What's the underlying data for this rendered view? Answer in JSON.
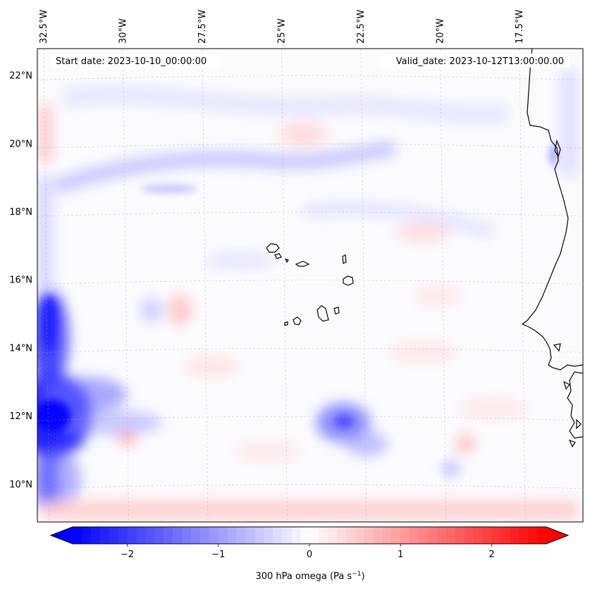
{
  "map": {
    "start_date_text": "Start date: 2023-10-10_00:00:00",
    "valid_date_text": "Valid_date: 2023-10-12T13:00:00.00",
    "extent": {
      "lon_min": -32.7,
      "lon_max": -15.5,
      "lat_min": 8.9,
      "lat_max": 22.8
    },
    "lon_ticks": [
      {
        "value": -32.5,
        "label": "32.5°W"
      },
      {
        "value": -30.0,
        "label": "30°W"
      },
      {
        "value": -27.5,
        "label": "27.5°W"
      },
      {
        "value": -25.0,
        "label": "25°W"
      },
      {
        "value": -22.5,
        "label": "22.5°W"
      },
      {
        "value": -20.0,
        "label": "20°W"
      },
      {
        "value": -17.5,
        "label": "17.5°W"
      }
    ],
    "lat_ticks": [
      {
        "value": 22,
        "label": "22°N"
      },
      {
        "value": 20,
        "label": "20°N"
      },
      {
        "value": 18,
        "label": "18°N"
      },
      {
        "value": 16,
        "label": "16°N"
      },
      {
        "value": 14,
        "label": "14°N"
      },
      {
        "value": 12,
        "label": "12°N"
      },
      {
        "value": 10,
        "label": "10°N"
      }
    ],
    "gridlines": true,
    "field_colors": {
      "negative": "#0000ff",
      "neutral": "#ffffff",
      "positive": "#ff0000"
    }
  },
  "colorbar": {
    "title": "300 hPa omega (Pa s",
    "title_sup": "−1",
    "title_close": ")",
    "range": [
      -2.6,
      2.6
    ],
    "ticks": [
      {
        "value": -2,
        "label": "−2"
      },
      {
        "value": -1,
        "label": "−1"
      },
      {
        "value": 0,
        "label": "0"
      },
      {
        "value": 1,
        "label": "1"
      },
      {
        "value": 2,
        "label": "2"
      }
    ],
    "extend": "both",
    "levels": 52
  }
}
